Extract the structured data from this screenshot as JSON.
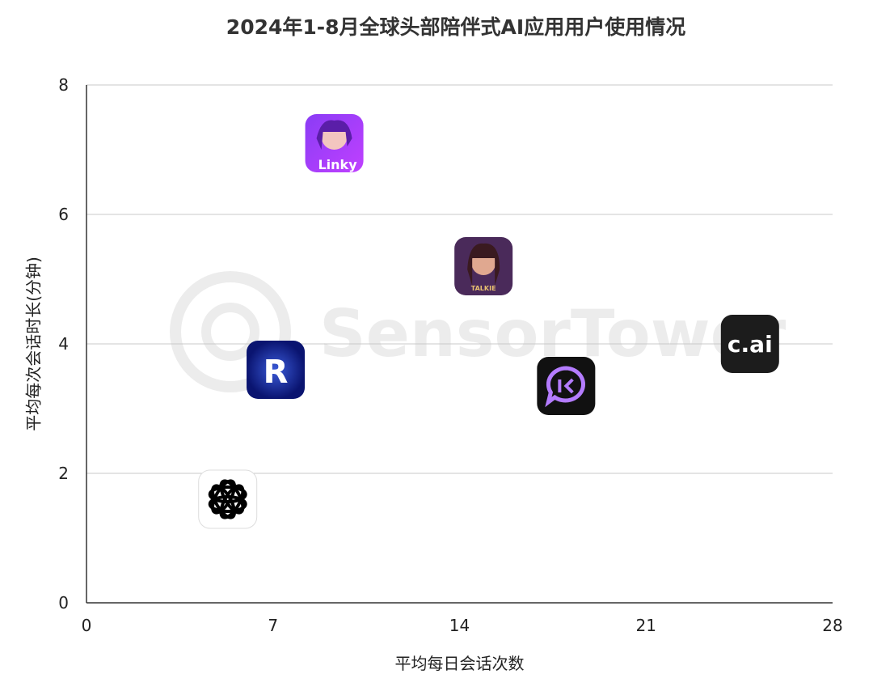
{
  "chart_data": {
    "type": "scatter",
    "title": "2024年1-8月全球头部陪伴式AI应用用户使用情况",
    "xlabel": "平均每日会话次数",
    "ylabel": "平均每次会话时长(分钟)",
    "xlim": [
      0,
      28
    ],
    "ylim": [
      0,
      8
    ],
    "xticks": [
      "0",
      "7",
      "14",
      "21",
      "28"
    ],
    "yticks": [
      "0",
      "2",
      "4",
      "6",
      "8"
    ],
    "grid": "horizontal",
    "watermark": "SensorTower",
    "points": [
      {
        "icon": "linky-app-icon",
        "logo_text": "Linky",
        "x": 9.3,
        "y": 7.1,
        "color": "#7b2ff0"
      },
      {
        "icon": "talkie-app-icon",
        "logo_text": "TALKIE",
        "x": 14.9,
        "y": 5.2,
        "color": "#4a2a5a"
      },
      {
        "icon": "character-ai-app-icon",
        "logo_text": "c.ai",
        "x": 24.9,
        "y": 4.0,
        "color": "#1c1c1c"
      },
      {
        "icon": "chat-bubble-app-icon",
        "x": 18.0,
        "y": 3.35,
        "color": "#111111"
      },
      {
        "icon": "replika-r-app-icon",
        "logo_text": "R",
        "x": 7.1,
        "y": 3.6,
        "color": "#1a2a8a"
      },
      {
        "icon": "chatgpt-app-icon",
        "x": 5.3,
        "y": 1.6,
        "color": "#ffffff"
      }
    ]
  }
}
